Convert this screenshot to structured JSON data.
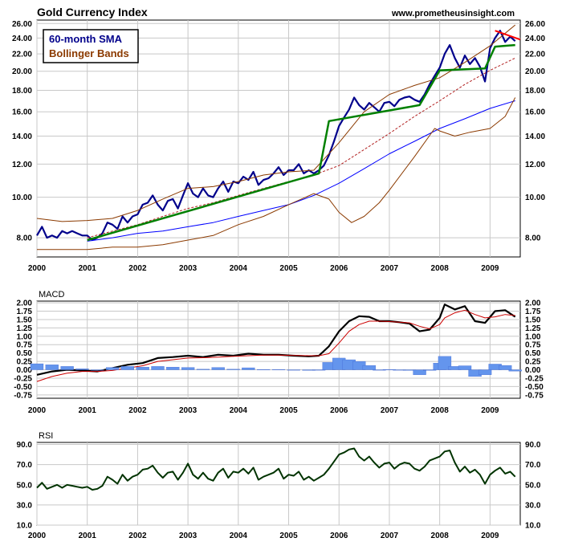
{
  "header": {
    "title": "Gold Currency Index",
    "website": "www.prometheusinsight.com"
  },
  "colors": {
    "price": "#00008b",
    "sma": "#0000ff",
    "bollinger": "#8b3a00",
    "bollinger_mid": "#b22222",
    "trendline": "#008000",
    "downtrend": "#ff0000",
    "macd": "#000000",
    "signal": "#cc0000",
    "histogram": "#6495ed",
    "rsi": "#003300",
    "grid": "#c8c8c8",
    "legend_sma": "#00008b",
    "legend_bb": "#8b3a00"
  },
  "chart_data": [
    {
      "type": "line",
      "title": "Gold Currency Index",
      "legend": [
        "60-month SMA",
        "Bollinger Bands"
      ],
      "legend_placement": "top-left",
      "y_scale": "log",
      "ylim": [
        7.2,
        26.5
      ],
      "y_ticks": [
        "8.00",
        "10.00",
        "12.00",
        "14.00",
        "16.00",
        "18.00",
        "20.00",
        "22.00",
        "24.00",
        "26.00"
      ],
      "y_tick_values": [
        8,
        10,
        12,
        14,
        16,
        18,
        20,
        22,
        24,
        26
      ],
      "x_ticks": [
        "2000",
        "2001",
        "2002",
        "2003",
        "2004",
        "2005",
        "2006",
        "2007",
        "2008",
        "2009"
      ],
      "xlim": [
        2000,
        2009.6
      ],
      "grid": true,
      "series": [
        {
          "role": "price",
          "x": [
            2000.0,
            2000.1,
            2000.2,
            2000.3,
            2000.4,
            2000.5,
            2000.6,
            2000.7,
            2000.8,
            2000.9,
            2001.0,
            2001.1,
            2001.2,
            2001.3,
            2001.4,
            2001.5,
            2001.6,
            2001.7,
            2001.8,
            2001.9,
            2002.0,
            2002.1,
            2002.2,
            2002.3,
            2002.4,
            2002.5,
            2002.6,
            2002.7,
            2002.8,
            2002.9,
            2003.0,
            2003.1,
            2003.2,
            2003.3,
            2003.4,
            2003.5,
            2003.6,
            2003.7,
            2003.8,
            2003.9,
            2004.0,
            2004.1,
            2004.2,
            2004.3,
            2004.4,
            2004.5,
            2004.6,
            2004.7,
            2004.8,
            2004.9,
            2005.0,
            2005.1,
            2005.2,
            2005.3,
            2005.4,
            2005.5,
            2005.6,
            2005.7,
            2005.8,
            2005.9,
            2006.0,
            2006.1,
            2006.2,
            2006.3,
            2006.4,
            2006.5,
            2006.6,
            2006.7,
            2006.8,
            2006.9,
            2007.0,
            2007.1,
            2007.2,
            2007.3,
            2007.4,
            2007.5,
            2007.6,
            2007.7,
            2007.8,
            2007.9,
            2008.0,
            2008.1,
            2008.2,
            2008.3,
            2008.4,
            2008.5,
            2008.6,
            2008.7,
            2008.8,
            2008.9,
            2009.0,
            2009.1,
            2009.2,
            2009.3,
            2009.4,
            2009.5
          ],
          "y": [
            8.1,
            8.5,
            8.0,
            8.1,
            8.0,
            8.3,
            8.2,
            8.3,
            8.2,
            8.1,
            8.1,
            7.9,
            8.0,
            8.2,
            8.7,
            8.6,
            8.4,
            9.0,
            8.7,
            9.0,
            9.1,
            9.6,
            9.7,
            10.1,
            9.6,
            9.3,
            9.8,
            9.9,
            9.4,
            10.1,
            10.8,
            10.2,
            10.0,
            10.5,
            10.1,
            10.0,
            10.5,
            10.9,
            10.3,
            10.9,
            10.8,
            11.2,
            11.0,
            11.5,
            10.7,
            11.0,
            11.1,
            11.4,
            11.8,
            11.3,
            11.6,
            11.6,
            12.0,
            11.4,
            11.6,
            11.4,
            11.6,
            11.9,
            12.6,
            13.6,
            14.8,
            15.5,
            16.2,
            17.3,
            16.6,
            16.2,
            16.8,
            16.4,
            16.0,
            16.8,
            16.9,
            16.5,
            17.1,
            17.3,
            17.4,
            17.1,
            16.9,
            17.6,
            18.6,
            19.5,
            20.4,
            22.0,
            23.1,
            21.5,
            20.4,
            21.8,
            20.8,
            21.5,
            20.5,
            18.9,
            22.7,
            24.0,
            25.0,
            23.5,
            24.2,
            23.6
          ]
        },
        {
          "name": "60-month SMA",
          "role": "sma",
          "x": [
            2001.0,
            2001.5,
            2002.0,
            2002.5,
            2003.0,
            2003.5,
            2004.0,
            2004.5,
            2005.0,
            2005.5,
            2006.0,
            2006.5,
            2007.0,
            2007.5,
            2008.0,
            2008.5,
            2009.0,
            2009.5
          ],
          "y": [
            7.85,
            8.0,
            8.2,
            8.3,
            8.5,
            8.7,
            9.0,
            9.3,
            9.6,
            10.1,
            10.8,
            11.7,
            12.7,
            13.6,
            14.6,
            15.4,
            16.3,
            17.0
          ]
        },
        {
          "name": "Bollinger Bands",
          "role": "bollinger_upper",
          "x": [
            2000.0,
            2000.5,
            2001.0,
            2001.5,
            2002.0,
            2002.5,
            2003.0,
            2003.5,
            2004.0,
            2004.5,
            2005.0,
            2005.5,
            2006.0,
            2006.5,
            2007.0,
            2007.5,
            2008.0,
            2008.5,
            2009.0,
            2009.5
          ],
          "y": [
            8.9,
            8.75,
            8.8,
            8.9,
            9.3,
            9.9,
            10.5,
            10.6,
            10.9,
            11.3,
            11.5,
            11.6,
            13.5,
            16.0,
            17.6,
            18.5,
            19.3,
            21.0,
            23.0,
            25.8
          ]
        },
        {
          "role": "bollinger_lower",
          "x": [
            2000.0,
            2000.5,
            2001.0,
            2001.5,
            2002.0,
            2002.5,
            2003.0,
            2003.5,
            2004.0,
            2004.5,
            2005.0,
            2005.5,
            2005.8,
            2006.0,
            2006.25,
            2006.5,
            2006.8,
            2007.0,
            2007.5,
            2007.9,
            2008.0,
            2008.3,
            2008.6,
            2009.0,
            2009.3,
            2009.5
          ],
          "y": [
            7.5,
            7.5,
            7.5,
            7.6,
            7.6,
            7.7,
            7.9,
            8.1,
            8.6,
            9.0,
            9.6,
            10.2,
            9.9,
            9.2,
            8.7,
            9.0,
            9.7,
            10.4,
            12.5,
            14.6,
            14.4,
            14.0,
            14.3,
            14.6,
            15.6,
            17.3
          ]
        },
        {
          "role": "bollinger_middle",
          "x": [
            2001.0,
            2001.5,
            2002.0,
            2002.5,
            2003.0,
            2003.5,
            2004.0,
            2004.5,
            2005.0,
            2005.5,
            2006.0,
            2006.5,
            2007.0,
            2007.5,
            2008.0,
            2008.5,
            2009.0,
            2009.5
          ],
          "y": [
            8.0,
            8.3,
            8.6,
            9.0,
            9.4,
            9.7,
            10.1,
            10.5,
            10.9,
            11.3,
            11.9,
            13.0,
            14.2,
            15.6,
            17.0,
            18.6,
            20.1,
            21.5
          ]
        },
        {
          "role": "trendline",
          "x": [
            2001.0,
            2005.6,
            2005.8,
            2007.6,
            2008.0,
            2008.9,
            2009.1,
            2009.5
          ],
          "y": [
            7.9,
            11.4,
            15.2,
            16.6,
            20.1,
            20.3,
            22.9,
            23.1
          ]
        },
        {
          "role": "downtrend",
          "x": [
            2009.1,
            2009.6
          ],
          "y": [
            25.0,
            23.8
          ]
        }
      ]
    },
    {
      "type": "line",
      "title": "MACD",
      "ylim": [
        -0.85,
        2.05
      ],
      "y_ticks": [
        "2.00",
        "1.75",
        "1.50",
        "1.25",
        "1.00",
        "0.75",
        "0.50",
        "0.25",
        "0.00",
        "-0.25",
        "-0.50",
        "-0.75"
      ],
      "y_tick_values": [
        2.0,
        1.75,
        1.5,
        1.25,
        1.0,
        0.75,
        0.5,
        0.25,
        0.0,
        -0.25,
        -0.5,
        -0.75
      ],
      "x_ticks": [
        "2000",
        "2001",
        "2002",
        "2003",
        "2004",
        "2005",
        "2006",
        "2007",
        "2008",
        "2009"
      ],
      "xlim": [
        2000,
        2009.6
      ],
      "grid": true,
      "series": [
        {
          "role": "macd",
          "x": [
            2000.0,
            2000.3,
            2000.6,
            2000.9,
            2001.2,
            2001.5,
            2001.8,
            2002.1,
            2002.4,
            2002.7,
            2003.0,
            2003.3,
            2003.6,
            2003.9,
            2004.2,
            2004.5,
            2004.8,
            2005.1,
            2005.4,
            2005.6,
            2005.8,
            2006.0,
            2006.2,
            2006.4,
            2006.6,
            2006.8,
            2007.0,
            2007.2,
            2007.4,
            2007.6,
            2007.8,
            2008.0,
            2008.1,
            2008.3,
            2008.5,
            2008.7,
            2008.9,
            2009.1,
            2009.3,
            2009.5
          ],
          "y": [
            -0.15,
            -0.05,
            0.0,
            -0.02,
            -0.05,
            0.05,
            0.15,
            0.2,
            0.35,
            0.38,
            0.42,
            0.38,
            0.45,
            0.42,
            0.48,
            0.45,
            0.45,
            0.42,
            0.4,
            0.42,
            0.7,
            1.15,
            1.45,
            1.6,
            1.58,
            1.45,
            1.45,
            1.42,
            1.38,
            1.15,
            1.2,
            1.55,
            1.95,
            1.8,
            1.9,
            1.45,
            1.4,
            1.75,
            1.78,
            1.58
          ]
        },
        {
          "role": "signal",
          "x": [
            2000.0,
            2000.3,
            2000.6,
            2000.9,
            2001.2,
            2001.5,
            2001.8,
            2002.1,
            2002.4,
            2002.7,
            2003.0,
            2003.3,
            2003.6,
            2003.9,
            2004.2,
            2004.5,
            2004.8,
            2005.1,
            2005.4,
            2005.6,
            2005.8,
            2006.0,
            2006.2,
            2006.4,
            2006.6,
            2006.8,
            2007.0,
            2007.2,
            2007.4,
            2007.6,
            2007.8,
            2008.0,
            2008.1,
            2008.3,
            2008.5,
            2008.7,
            2008.9,
            2009.1,
            2009.3,
            2009.5
          ],
          "y": [
            -0.35,
            -0.2,
            -0.1,
            -0.05,
            -0.05,
            -0.02,
            0.05,
            0.12,
            0.25,
            0.3,
            0.35,
            0.36,
            0.38,
            0.4,
            0.42,
            0.44,
            0.44,
            0.43,
            0.42,
            0.42,
            0.48,
            0.8,
            1.15,
            1.35,
            1.45,
            1.45,
            1.44,
            1.42,
            1.4,
            1.3,
            1.22,
            1.35,
            1.55,
            1.7,
            1.78,
            1.65,
            1.55,
            1.58,
            1.65,
            1.62
          ]
        },
        {
          "role": "histogram",
          "x": [
            2000.0,
            2000.3,
            2000.6,
            2000.9,
            2001.2,
            2001.5,
            2001.8,
            2002.1,
            2002.4,
            2002.7,
            2003.0,
            2003.3,
            2003.6,
            2003.9,
            2004.2,
            2004.5,
            2004.8,
            2005.1,
            2005.4,
            2005.6,
            2005.8,
            2006.0,
            2006.2,
            2006.4,
            2006.6,
            2006.8,
            2007.0,
            2007.2,
            2007.4,
            2007.6,
            2007.8,
            2008.0,
            2008.1,
            2008.3,
            2008.5,
            2008.7,
            2008.9,
            2009.1,
            2009.3,
            2009.5
          ],
          "y": [
            0.18,
            0.15,
            0.1,
            0.03,
            0.0,
            0.07,
            0.1,
            0.08,
            0.1,
            0.08,
            0.07,
            0.02,
            0.07,
            0.02,
            0.06,
            0.01,
            0.01,
            -0.01,
            -0.02,
            0.0,
            0.22,
            0.35,
            0.3,
            0.25,
            0.13,
            0.0,
            0.01,
            0.0,
            -0.02,
            -0.15,
            -0.02,
            0.2,
            0.4,
            0.1,
            0.12,
            -0.2,
            -0.15,
            0.17,
            0.13,
            -0.04
          ]
        }
      ]
    },
    {
      "type": "line",
      "title": "RSI",
      "ylim": [
        10,
        92
      ],
      "y_ticks": [
        "90.0",
        "70.0",
        "50.0",
        "30.0",
        "10.0"
      ],
      "y_tick_values": [
        90,
        70,
        50,
        30,
        10
      ],
      "x_ticks": [
        "2000",
        "2001",
        "2002",
        "2003",
        "2004",
        "2005",
        "2006",
        "2007",
        "2008",
        "2009"
      ],
      "xlim": [
        2000,
        2009.6
      ],
      "grid": true,
      "series": [
        {
          "role": "rsi",
          "x": [
            2000.0,
            2000.1,
            2000.2,
            2000.3,
            2000.4,
            2000.5,
            2000.6,
            2000.7,
            2000.8,
            2000.9,
            2001.0,
            2001.1,
            2001.2,
            2001.3,
            2001.4,
            2001.5,
            2001.6,
            2001.7,
            2001.8,
            2001.9,
            2002.0,
            2002.1,
            2002.2,
            2002.3,
            2002.4,
            2002.5,
            2002.6,
            2002.7,
            2002.8,
            2002.9,
            2003.0,
            2003.1,
            2003.2,
            2003.3,
            2003.4,
            2003.5,
            2003.6,
            2003.7,
            2003.8,
            2003.9,
            2004.0,
            2004.1,
            2004.2,
            2004.3,
            2004.4,
            2004.5,
            2004.6,
            2004.7,
            2004.8,
            2004.9,
            2005.0,
            2005.1,
            2005.2,
            2005.3,
            2005.4,
            2005.5,
            2005.6,
            2005.7,
            2005.8,
            2005.9,
            2006.0,
            2006.1,
            2006.2,
            2006.3,
            2006.4,
            2006.5,
            2006.6,
            2006.7,
            2006.8,
            2006.9,
            2007.0,
            2007.1,
            2007.2,
            2007.3,
            2007.4,
            2007.5,
            2007.6,
            2007.7,
            2007.8,
            2007.9,
            2008.0,
            2008.1,
            2008.2,
            2008.3,
            2008.4,
            2008.5,
            2008.6,
            2008.7,
            2008.8,
            2008.9,
            2009.0,
            2009.1,
            2009.2,
            2009.3,
            2009.4,
            2009.5
          ],
          "y": [
            47,
            52,
            46,
            48,
            50,
            47,
            50,
            49,
            48,
            47,
            48,
            45,
            46,
            49,
            58,
            55,
            51,
            60,
            54,
            58,
            60,
            65,
            66,
            69,
            62,
            57,
            62,
            63,
            55,
            62,
            71,
            60,
            56,
            62,
            56,
            54,
            62,
            66,
            57,
            63,
            62,
            66,
            61,
            67,
            55,
            58,
            60,
            62,
            66,
            56,
            60,
            59,
            63,
            55,
            58,
            54,
            57,
            60,
            66,
            73,
            80,
            82,
            85,
            86,
            78,
            74,
            78,
            72,
            67,
            71,
            72,
            66,
            70,
            72,
            71,
            66,
            64,
            68,
            74,
            76,
            78,
            83,
            84,
            72,
            63,
            68,
            62,
            65,
            60,
            51,
            60,
            64,
            67,
            61,
            63,
            58
          ]
        }
      ]
    }
  ]
}
